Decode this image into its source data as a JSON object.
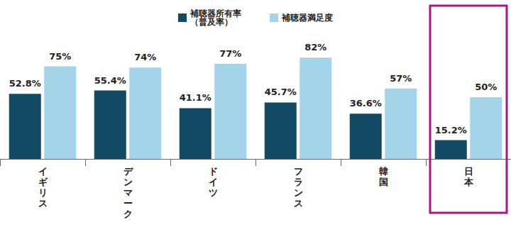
{
  "chart_data": {
    "type": "bar",
    "categories": [
      "イギリス",
      "デンマーク",
      "ドイツ",
      "フランス",
      "韓国",
      "日本"
    ],
    "series": [
      {
        "name": "補聴器所有率\n（普及率）",
        "color": "#134a63",
        "values": [
          52.8,
          55.4,
          41.1,
          45.7,
          36.6,
          15.2
        ],
        "value_labels": [
          "52.8%",
          "55.4%",
          "41.1%",
          "45.7%",
          "36.6%",
          "15.2%"
        ]
      },
      {
        "name": "補聴器満足度",
        "color": "#a3d4ea",
        "values": [
          75,
          74,
          77,
          82,
          57,
          50
        ],
        "value_labels": [
          "75%",
          "74%",
          "77%",
          "82%",
          "57%",
          "50%"
        ]
      }
    ],
    "ylim": [
      0,
      100
    ],
    "data_labels": true,
    "tick_labels": "x",
    "grid": false,
    "legend": "top"
  }
}
